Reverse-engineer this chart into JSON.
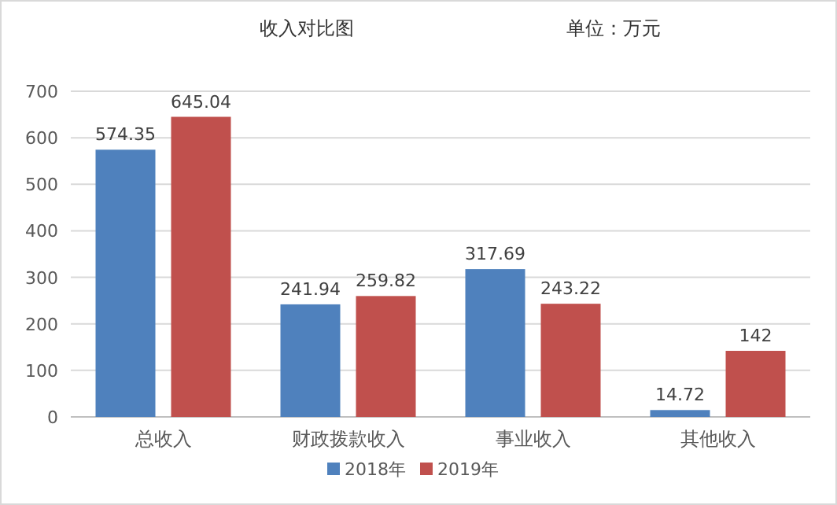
{
  "chart_data": {
    "type": "bar",
    "title": "收入对比图",
    "subtitle": "单位：万元",
    "categories": [
      "总收入",
      "财政拨款收入",
      "事业收入",
      "其他收入"
    ],
    "series": [
      {
        "name": "2018年",
        "color": "#4f81bd",
        "values": [
          574.35,
          241.94,
          317.69,
          14.72
        ]
      },
      {
        "name": "2019年",
        "color": "#c0504d",
        "values": [
          645.04,
          259.82,
          243.22,
          142
        ]
      }
    ],
    "ylim": [
      0,
      700
    ],
    "yticks": [
      0,
      100,
      200,
      300,
      400,
      500,
      600,
      700
    ],
    "grid": "y",
    "legend": "bottom",
    "data_labels": true
  }
}
